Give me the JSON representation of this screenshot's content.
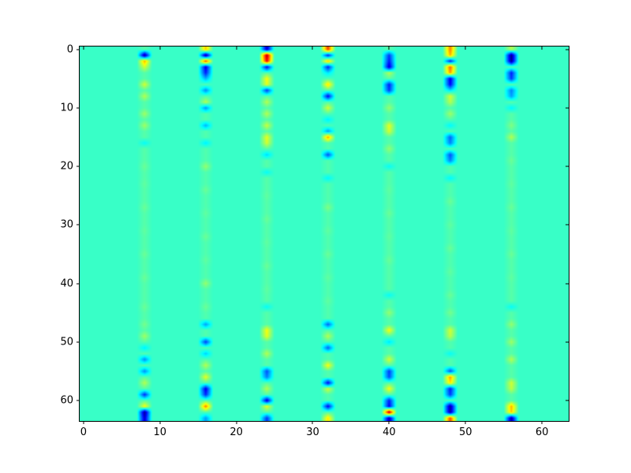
{
  "figure": {
    "background_color": "#ffffff",
    "frame_color": "#000000",
    "tick_color": "#000000",
    "label_color": "#000000"
  },
  "chart_data": {
    "type": "heatmap",
    "title": "",
    "xlabel": "",
    "ylabel": "",
    "legend": "none",
    "grid": false,
    "colormap": "jet",
    "grid_size": [
      64,
      64
    ],
    "xlim": [
      -0.5,
      63.5
    ],
    "ylim": [
      63.5,
      -0.5
    ],
    "x_ticks": [
      0,
      10,
      20,
      30,
      40,
      50,
      60
    ],
    "y_ticks": [
      0,
      10,
      20,
      30,
      40,
      50,
      60
    ],
    "background_value": 0.43,
    "value_range": [
      0,
      1
    ],
    "description": "64x64 map, uniform turquoise background with blurred vertical stripes of blue/yellow/red blobs at every 8th column, strongest at top and bottom edges",
    "stripes": [
      {
        "col": 8,
        "base": 0.46,
        "cells": [
          [
            1,
            0.02
          ],
          [
            2,
            0.7
          ],
          [
            3,
            0.58
          ],
          [
            6,
            0.58
          ],
          [
            8,
            0.55
          ],
          [
            11,
            0.53
          ],
          [
            13,
            0.53
          ],
          [
            16,
            0.38
          ],
          [
            20,
            0.48
          ],
          [
            23,
            0.47
          ],
          [
            27,
            0.48
          ],
          [
            31,
            0.47
          ],
          [
            35,
            0.48
          ],
          [
            39,
            0.48
          ],
          [
            44,
            0.48
          ],
          [
            47,
            0.49
          ],
          [
            49,
            0.53
          ],
          [
            51,
            0.36
          ],
          [
            53,
            0.26
          ],
          [
            55,
            0.26
          ],
          [
            57,
            0.55
          ],
          [
            59,
            0.16
          ],
          [
            61,
            0.62
          ],
          [
            62,
            0.02
          ],
          [
            63,
            0.08
          ]
        ]
      },
      {
        "col": 16,
        "base": 0.455,
        "cells": [
          [
            0,
            0.68
          ],
          [
            1,
            0.02
          ],
          [
            2,
            0.8
          ],
          [
            3,
            0.1
          ],
          [
            4,
            0.15
          ],
          [
            5,
            0.3
          ],
          [
            7,
            0.26
          ],
          [
            9,
            0.55
          ],
          [
            10,
            0.27
          ],
          [
            13,
            0.3
          ],
          [
            16,
            0.36
          ],
          [
            20,
            0.52
          ],
          [
            24,
            0.48
          ],
          [
            28,
            0.47
          ],
          [
            32,
            0.48
          ],
          [
            36,
            0.47
          ],
          [
            40,
            0.52
          ],
          [
            44,
            0.48
          ],
          [
            47,
            0.28
          ],
          [
            50,
            0.18
          ],
          [
            52,
            0.33
          ],
          [
            54,
            0.55
          ],
          [
            56,
            0.6
          ],
          [
            58,
            0.1
          ],
          [
            59,
            0.16
          ],
          [
            61,
            0.75
          ],
          [
            63,
            0.28
          ]
        ]
      },
      {
        "col": 24,
        "base": 0.46,
        "cells": [
          [
            0,
            0.08
          ],
          [
            1,
            0.95
          ],
          [
            2,
            0.88
          ],
          [
            3,
            0.12
          ],
          [
            5,
            0.62
          ],
          [
            6,
            0.6
          ],
          [
            7,
            0.18
          ],
          [
            9,
            0.55
          ],
          [
            11,
            0.55
          ],
          [
            13,
            0.57
          ],
          [
            15,
            0.6
          ],
          [
            16,
            0.58
          ],
          [
            18,
            0.34
          ],
          [
            21,
            0.38
          ],
          [
            25,
            0.47
          ],
          [
            29,
            0.48
          ],
          [
            33,
            0.47
          ],
          [
            37,
            0.48
          ],
          [
            41,
            0.47
          ],
          [
            44,
            0.38
          ],
          [
            48,
            0.62
          ],
          [
            49,
            0.6
          ],
          [
            52,
            0.55
          ],
          [
            55,
            0.2
          ],
          [
            56,
            0.25
          ],
          [
            58,
            0.55
          ],
          [
            60,
            0.08
          ],
          [
            61,
            0.6
          ],
          [
            63,
            0.18
          ]
        ]
      },
      {
        "col": 32,
        "base": 0.455,
        "cells": [
          [
            0,
            0.82
          ],
          [
            1,
            0.15
          ],
          [
            2,
            0.68
          ],
          [
            3,
            0.15
          ],
          [
            4,
            0.35
          ],
          [
            6,
            0.66
          ],
          [
            8,
            0.12
          ],
          [
            10,
            0.58
          ],
          [
            12,
            0.36
          ],
          [
            14,
            0.28
          ],
          [
            15,
            0.72
          ],
          [
            18,
            0.2
          ],
          [
            22,
            0.37
          ],
          [
            27,
            0.5
          ],
          [
            31,
            0.47
          ],
          [
            35,
            0.48
          ],
          [
            39,
            0.47
          ],
          [
            43,
            0.47
          ],
          [
            47,
            0.22
          ],
          [
            49,
            0.55
          ],
          [
            51,
            0.22
          ],
          [
            54,
            0.62
          ],
          [
            57,
            0.12
          ],
          [
            58,
            0.58
          ],
          [
            61,
            0.12
          ],
          [
            63,
            0.65
          ]
        ]
      },
      {
        "col": 40,
        "base": 0.46,
        "cells": [
          [
            1,
            0.18
          ],
          [
            2,
            0.15
          ],
          [
            3,
            0.08
          ],
          [
            4,
            0.55
          ],
          [
            6,
            0.15
          ],
          [
            7,
            0.18
          ],
          [
            10,
            0.52
          ],
          [
            13,
            0.6
          ],
          [
            14,
            0.58
          ],
          [
            17,
            0.52
          ],
          [
            20,
            0.38
          ],
          [
            24,
            0.47
          ],
          [
            28,
            0.48
          ],
          [
            32,
            0.47
          ],
          [
            36,
            0.48
          ],
          [
            42,
            0.38
          ],
          [
            45,
            0.52
          ],
          [
            48,
            0.62
          ],
          [
            50,
            0.35
          ],
          [
            53,
            0.58
          ],
          [
            55,
            0.18
          ],
          [
            56,
            0.2
          ],
          [
            58,
            0.62
          ],
          [
            60,
            0.15
          ],
          [
            61,
            0.12
          ],
          [
            62,
            0.95
          ],
          [
            63,
            0.06
          ]
        ]
      },
      {
        "col": 48,
        "base": 0.455,
        "cells": [
          [
            0,
            0.75
          ],
          [
            1,
            0.7
          ],
          [
            2,
            0.15
          ],
          [
            3,
            0.78
          ],
          [
            4,
            0.72
          ],
          [
            5,
            0.1
          ],
          [
            6,
            0.12
          ],
          [
            7,
            0.35
          ],
          [
            8,
            0.58
          ],
          [
            9,
            0.55
          ],
          [
            11,
            0.53
          ],
          [
            13,
            0.37
          ],
          [
            15,
            0.22
          ],
          [
            16,
            0.25
          ],
          [
            18,
            0.2
          ],
          [
            19,
            0.25
          ],
          [
            22,
            0.37
          ],
          [
            26,
            0.48
          ],
          [
            30,
            0.47
          ],
          [
            34,
            0.48
          ],
          [
            38,
            0.47
          ],
          [
            42,
            0.48
          ],
          [
            45,
            0.49
          ],
          [
            48,
            0.58
          ],
          [
            49,
            0.56
          ],
          [
            52,
            0.38
          ],
          [
            55,
            0.2
          ],
          [
            56,
            0.72
          ],
          [
            57,
            0.65
          ],
          [
            58,
            0.15
          ],
          [
            59,
            0.18
          ],
          [
            61,
            0.03
          ],
          [
            62,
            0.04
          ],
          [
            63,
            0.8
          ]
        ]
      },
      {
        "col": 56,
        "base": 0.46,
        "cells": [
          [
            0,
            0.55
          ],
          [
            1,
            0.01
          ],
          [
            2,
            0.02
          ],
          [
            4,
            0.15
          ],
          [
            5,
            0.18
          ],
          [
            7,
            0.25
          ],
          [
            8,
            0.28
          ],
          [
            10,
            0.37
          ],
          [
            13,
            0.5
          ],
          [
            15,
            0.55
          ],
          [
            19,
            0.48
          ],
          [
            23,
            0.47
          ],
          [
            27,
            0.48
          ],
          [
            31,
            0.47
          ],
          [
            35,
            0.48
          ],
          [
            39,
            0.47
          ],
          [
            44,
            0.38
          ],
          [
            47,
            0.52
          ],
          [
            50,
            0.53
          ],
          [
            53,
            0.55
          ],
          [
            57,
            0.58
          ],
          [
            58,
            0.56
          ],
          [
            61,
            0.7
          ],
          [
            62,
            0.68
          ],
          [
            63,
            0.05
          ]
        ]
      }
    ]
  }
}
